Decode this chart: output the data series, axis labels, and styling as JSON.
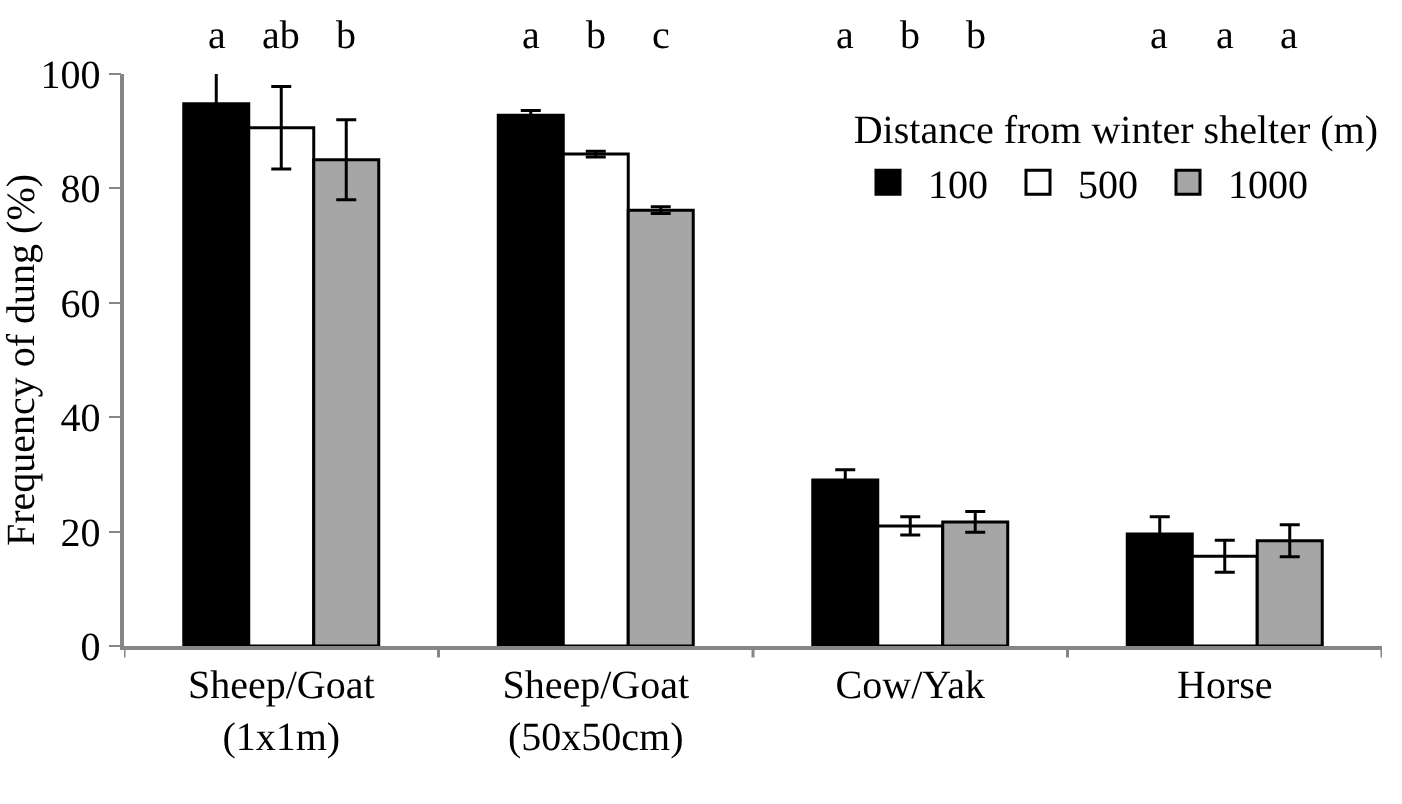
{
  "chart_data": {
    "type": "bar",
    "ylabel": "Frequency of dung (%)",
    "legend_title": "Distance from winter shelter (m)",
    "categories": [
      "Sheep/Goat\n(1x1m)",
      "Sheep/Goat\n(50x50cm)",
      "Cow/Yak",
      "Horse"
    ],
    "series": [
      {
        "name": "100",
        "color": "#000000",
        "values": [
          94.8,
          92.8,
          29,
          19.6
        ],
        "errors": [
          5.5,
          0.8,
          1.8,
          3
        ]
      },
      {
        "name": "500",
        "color": "#ffffff",
        "values": [
          90.6,
          86,
          21,
          15.7
        ],
        "errors": [
          7.2,
          0.5,
          1.6,
          2.8
        ]
      },
      {
        "name": "1000",
        "color": "#a6a6a6",
        "values": [
          85,
          76.2,
          21.7,
          18.4
        ],
        "errors": [
          7,
          0.6,
          1.8,
          2.8
        ]
      }
    ],
    "annotations": [
      "a",
      "ab",
      "b",
      "a",
      "b",
      "c",
      "a",
      "b",
      "b",
      "a",
      "a",
      "a"
    ],
    "ylim": [
      0,
      100
    ],
    "yticks": [
      0,
      20,
      40,
      60,
      80,
      100
    ],
    "grid": false,
    "legend": "top right"
  }
}
